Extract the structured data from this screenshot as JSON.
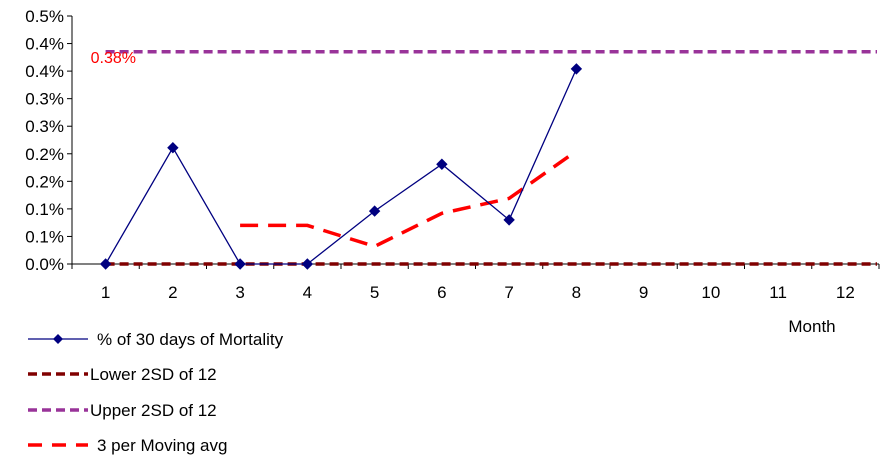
{
  "chart_data": {
    "type": "line",
    "categories": [
      "1",
      "2",
      "3",
      "4",
      "5",
      "6",
      "7",
      "8",
      "9",
      "10",
      "11",
      "12"
    ],
    "xlabel": "Month",
    "ylabel": "",
    "ylim": [
      0,
      0.0045
    ],
    "ytick_labels": [
      "0.0%",
      "0.1%",
      "0.1%",
      "0.2%",
      "0.2%",
      "0.3%",
      "0.3%",
      "0.4%",
      "0.4%",
      "0.5%"
    ],
    "grid": false,
    "legend_position": "bottom-left",
    "annotation": {
      "text": "0.38%",
      "x": 1,
      "y": 0.00376,
      "color": "#ff0000"
    },
    "series": [
      {
        "name": "% of 30 days of Mortality",
        "values": [
          0,
          0.00211,
          0,
          0,
          0.00096,
          0.00181,
          0.0008,
          0.00354,
          null,
          null,
          null,
          null
        ],
        "color": "#000080",
        "style": "solid-diamond"
      },
      {
        "name": "Lower 2SD of 12",
        "values": [
          0,
          0,
          0,
          0,
          0,
          0,
          0,
          0,
          0,
          0,
          0,
          0
        ],
        "color": "#800000",
        "style": "dash"
      },
      {
        "name": "Upper 2SD of 12",
        "values": [
          0.00385,
          0.00385,
          0.00385,
          0.00385,
          0.00385,
          0.00385,
          0.00385,
          0.00385,
          0.00385,
          0.00385,
          0.00385,
          0.00385
        ],
        "color": "#993399",
        "style": "dash"
      },
      {
        "name": "3 per Moving avg",
        "values": [
          null,
          null,
          0.0007,
          0.0007,
          0.00032,
          0.00092,
          0.00119,
          0.00205,
          null,
          null,
          null,
          null
        ],
        "color": "#ff0000",
        "style": "long-dash"
      }
    ]
  }
}
